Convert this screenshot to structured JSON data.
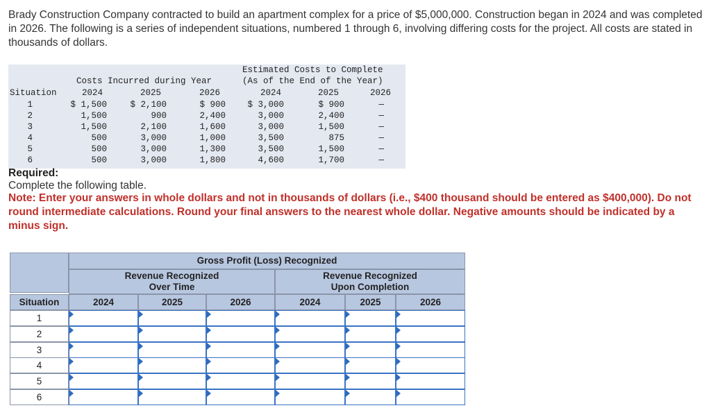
{
  "intro": "Brady Construction Company contracted to build an apartment complex for a price of $5,000,000. Construction began in 2024 and was completed in 2026. The following is a series of independent situations, numbered 1 through 6, involving differing costs for the project. All costs are stated in thousands of dollars.",
  "data_table": {
    "col_situation": "Situation",
    "group1_title": "Costs Incurred during Year",
    "group2_title_line1": "Estimated Costs to Complete",
    "group2_title_line2": "(As of the End of the Year)",
    "years": [
      "2024",
      "2025",
      "2026",
      "2024",
      "2025",
      "2026"
    ],
    "rows": [
      {
        "situation": "1",
        "c2024": "$ 1,500",
        "c2025": "$ 2,100",
        "c2026": "$ 900",
        "e2024": "$ 3,000",
        "e2025": "$ 900",
        "e2026": "—"
      },
      {
        "situation": "2",
        "c2024": "1,500",
        "c2025": "900",
        "c2026": "2,400",
        "e2024": "3,000",
        "e2025": "2,400",
        "e2026": "—"
      },
      {
        "situation": "3",
        "c2024": "1,500",
        "c2025": "2,100",
        "c2026": "1,600",
        "e2024": "3,000",
        "e2025": "1,500",
        "e2026": "—"
      },
      {
        "situation": "4",
        "c2024": "500",
        "c2025": "3,000",
        "c2026": "1,000",
        "e2024": "3,500",
        "e2025": "875",
        "e2026": "—"
      },
      {
        "situation": "5",
        "c2024": "500",
        "c2025": "3,000",
        "c2026": "1,300",
        "e2024": "3,500",
        "e2025": "1,500",
        "e2026": "—"
      },
      {
        "situation": "6",
        "c2024": "500",
        "c2025": "3,000",
        "c2026": "1,800",
        "e2024": "4,600",
        "e2025": "1,700",
        "e2026": "—"
      }
    ]
  },
  "required_label": "Required:",
  "required_text": "Complete the following table.",
  "note": "Note: Enter your answers in whole dollars and not in thousands of dollars (i.e., $400 thousand should be entered as $400,000). Do not round intermediate calculations. Round your final answers to the nearest whole dollar. Negative amounts should be indicated by a minus sign.",
  "answer_table": {
    "title": "Gross Profit (Loss) Recognized",
    "group1": "Revenue Recognized Over Time",
    "group2": "Revenue Recognized Upon Completion",
    "col_situation": "Situation",
    "years": [
      "2024",
      "2025",
      "2026",
      "2024",
      "2025",
      "2026"
    ],
    "situations": [
      "1",
      "2",
      "3",
      "4",
      "5",
      "6"
    ]
  }
}
